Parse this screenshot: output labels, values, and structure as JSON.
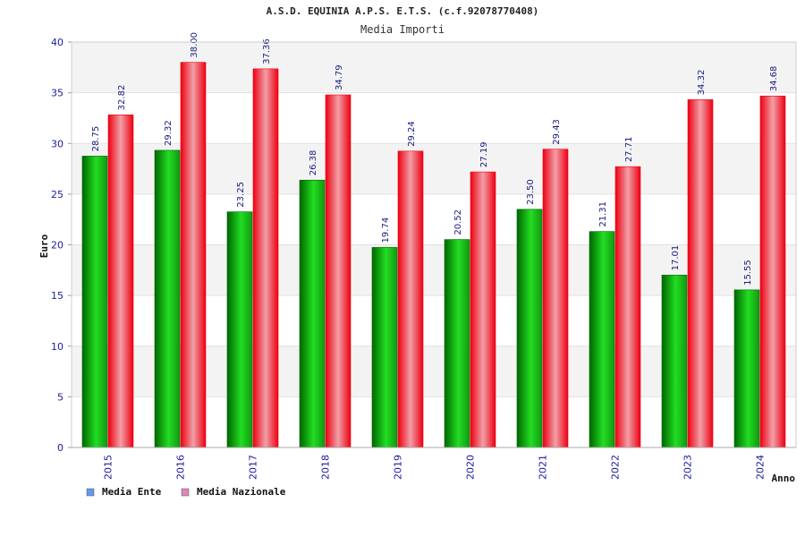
{
  "chart_data": {
    "type": "bar",
    "title": "A.S.D. EQUINIA A.P.S. E.T.S. (c.f.92078770408)",
    "subtitle": "Media Importi",
    "xlabel": "Anno",
    "ylabel": "Euro",
    "ylim": [
      0,
      40
    ],
    "yticks": [
      "0",
      "5",
      "10",
      "15",
      "20",
      "25",
      "30",
      "35",
      "40"
    ],
    "categories": [
      "2015",
      "2016",
      "2017",
      "2018",
      "2019",
      "2020",
      "2021",
      "2022",
      "2023",
      "2024"
    ],
    "series": [
      {
        "name": "Media Ente",
        "values": [
          28.75,
          29.32,
          23.25,
          26.38,
          19.74,
          20.52,
          23.5,
          21.31,
          17.01,
          15.55
        ],
        "labels": [
          "28.75",
          "29.32",
          "23.25",
          "26.38",
          "19.74",
          "20.52",
          "23.50",
          "21.31",
          "17.01",
          "15.55"
        ]
      },
      {
        "name": "Media Nazionale",
        "values": [
          32.82,
          38.0,
          37.36,
          34.79,
          29.24,
          27.19,
          29.43,
          27.71,
          34.32,
          34.68
        ],
        "labels": [
          "32.82",
          "38.00",
          "37.36",
          "34.79",
          "29.24",
          "27.19",
          "29.43",
          "27.71",
          "34.32",
          "34.68"
        ]
      }
    ],
    "legend_placement": "bottom-left",
    "grid": true,
    "colors": {
      "ente_dark": "#006600",
      "ente_light": "#22dd22",
      "naz_dark": "#ee0011",
      "naz_light": "#f0a0a8",
      "legend_ente": "#6699ee",
      "legend_naz": "#dd88bb",
      "band": "#f3f3f3"
    }
  }
}
